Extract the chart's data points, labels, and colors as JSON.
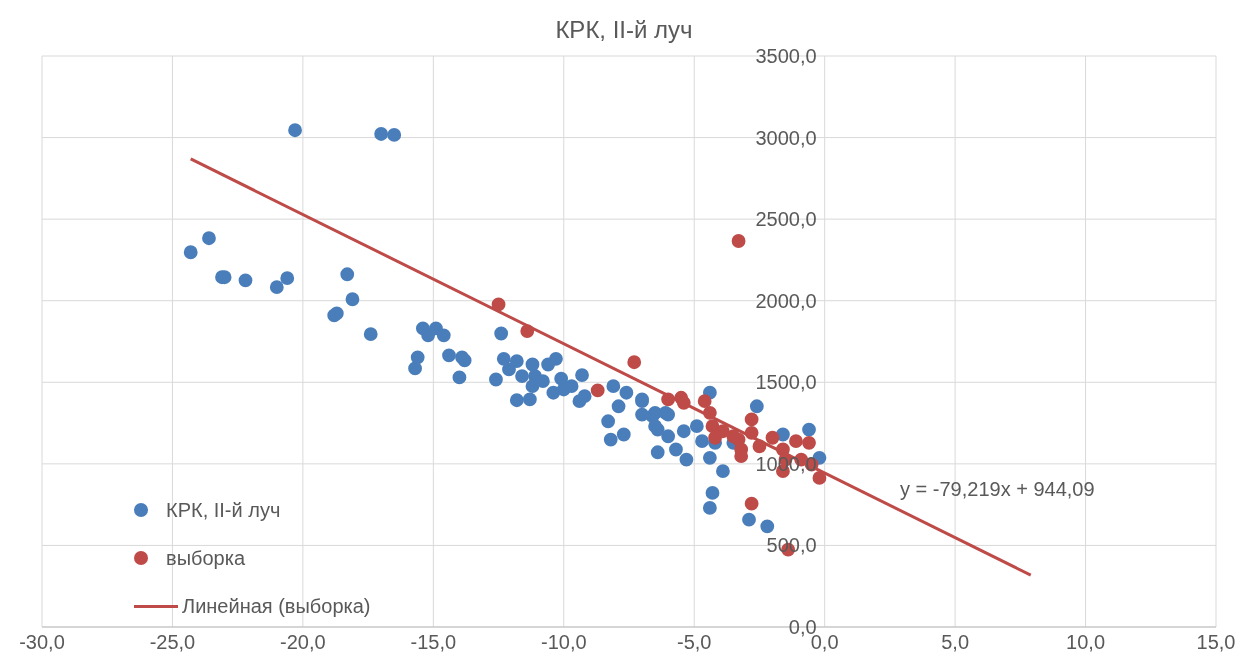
{
  "chart_data": {
    "type": "scatter",
    "title": "КРК, II-й луч",
    "series": [
      {
        "name": "КРК, II-й луч",
        "color": "#4a7ebb",
        "x": [
          -24.3,
          -23.6,
          -23.1,
          -23.0,
          -22.2,
          -21.0,
          -20.6,
          -20.3,
          -18.8,
          -18.7,
          -18.3,
          -18.1,
          -17.4,
          -17.0,
          -16.5,
          -15.7,
          -15.6,
          -15.4,
          -15.2,
          -14.9,
          -14.6,
          -14.4,
          -14.0,
          -13.9,
          -13.8,
          -12.4,
          -12.3,
          -12.6,
          -12.1,
          -11.8,
          -11.8,
          -11.3,
          -11.6,
          -11.2,
          -11.1,
          -10.8,
          -11.2,
          -10.6,
          -10.3,
          -10.4,
          -10.1,
          -10.0,
          -9.7,
          -9.3,
          -9.4,
          -9.2,
          -8.1,
          -7.9,
          -7.6,
          -7.0,
          -7.0,
          -8.3,
          -8.2,
          -7.7,
          -6.6,
          -6.5,
          -6.0,
          -6.0,
          -6.4,
          -5.7,
          -5.4,
          -5.3,
          -4.9,
          -7.0,
          -6.5,
          -6.1,
          -6.4,
          -4.7,
          -4.4,
          -4.4,
          -4.2,
          -3.9,
          -4.3,
          -4.4,
          -3.5,
          -2.6,
          -2.9,
          -2.2,
          -1.6,
          -0.6,
          -0.2
        ],
        "values": [
          2297,
          2383,
          2144,
          2144,
          2125,
          2083,
          2138,
          3045,
          1910,
          1922,
          2162,
          2009,
          1795,
          3022,
          3016,
          1585,
          1653,
          1830,
          1788,
          1830,
          1788,
          1665,
          1530,
          1653,
          1634,
          1799,
          1644,
          1517,
          1579,
          1630,
          1390,
          1395,
          1538,
          1609,
          1538,
          1507,
          1476,
          1609,
          1644,
          1436,
          1522,
          1456,
          1476,
          1544,
          1384,
          1415,
          1476,
          1353,
          1436,
          1395,
          1302,
          1261,
          1149,
          1180,
          1292,
          1231,
          1302,
          1169,
          1071,
          1088,
          1200,
          1026,
          1231,
          1384,
          1313,
          1313,
          1210,
          1139,
          1436,
          1037,
          1129,
          955,
          822,
          730,
          1129,
          1353,
          658,
          617,
          1180,
          1210,
          1037
        ]
      },
      {
        "name": "выборка",
        "color": "#be4b48",
        "x": [
          -12.5,
          -11.4,
          -7.3,
          -8.7,
          -6.0,
          -5.5,
          -5.4,
          -3.3,
          -4.6,
          -4.4,
          -4.3,
          -4.2,
          -3.9,
          -3.5,
          -3.3,
          -3.2,
          -2.8,
          -2.8,
          -2.5,
          -2.0,
          -1.6,
          -1.1,
          -0.6,
          -0.9,
          -0.5,
          -1.6,
          -0.2,
          -2.8,
          -1.4,
          -1.5,
          -3.2
        ],
        "values": [
          1977,
          1814,
          1623,
          1450,
          1395,
          1405,
          1374,
          2366,
          1384,
          1313,
          1231,
          1160,
          1200,
          1169,
          1149,
          1088,
          1272,
          1190,
          1108,
          1160,
          1088,
          1139,
          1129,
          1026,
          996,
          955,
          914,
          756,
          474,
          1026,
          1047
        ]
      },
      {
        "name": "Линейная (выборка)",
        "color": "#be4b48",
        "type": "line",
        "marker": "none",
        "x": [
          -24.3,
          7.9
        ],
        "values": [
          2869,
          318
        ]
      }
    ],
    "xlim": [
      -30,
      15
    ],
    "xticks": [
      {
        "value": -30,
        "label": "-30,0"
      },
      {
        "value": -25,
        "label": "-25,0"
      },
      {
        "value": -20,
        "label": "-20,0"
      },
      {
        "value": -15,
        "label": "-15,0"
      },
      {
        "value": -10,
        "label": "-10,0"
      },
      {
        "value": -5,
        "label": "-5,0"
      },
      {
        "value": 0,
        "label": "0,0"
      },
      {
        "value": 5,
        "label": "5,0"
      },
      {
        "value": 10,
        "label": "10,0"
      },
      {
        "value": 15,
        "label": "15,0"
      }
    ],
    "ylim": [
      0,
      3500
    ],
    "yticks": [
      {
        "value": 0,
        "label": "0,0"
      },
      {
        "value": 500,
        "label": "500,0"
      },
      {
        "value": 1000,
        "label": "1000,0"
      },
      {
        "value": 1500,
        "label": "1500,0"
      },
      {
        "value": 2000,
        "label": "2000,0"
      },
      {
        "value": 2500,
        "label": "2500,0"
      },
      {
        "value": 3000,
        "label": "3000,0"
      },
      {
        "value": 3500,
        "label": "3500,0"
      }
    ],
    "annotations": [
      "y = -79,219x + 944,09"
    ],
    "grid": true,
    "legend": "bottom left",
    "marker": "circle",
    "line_style": "solid"
  }
}
